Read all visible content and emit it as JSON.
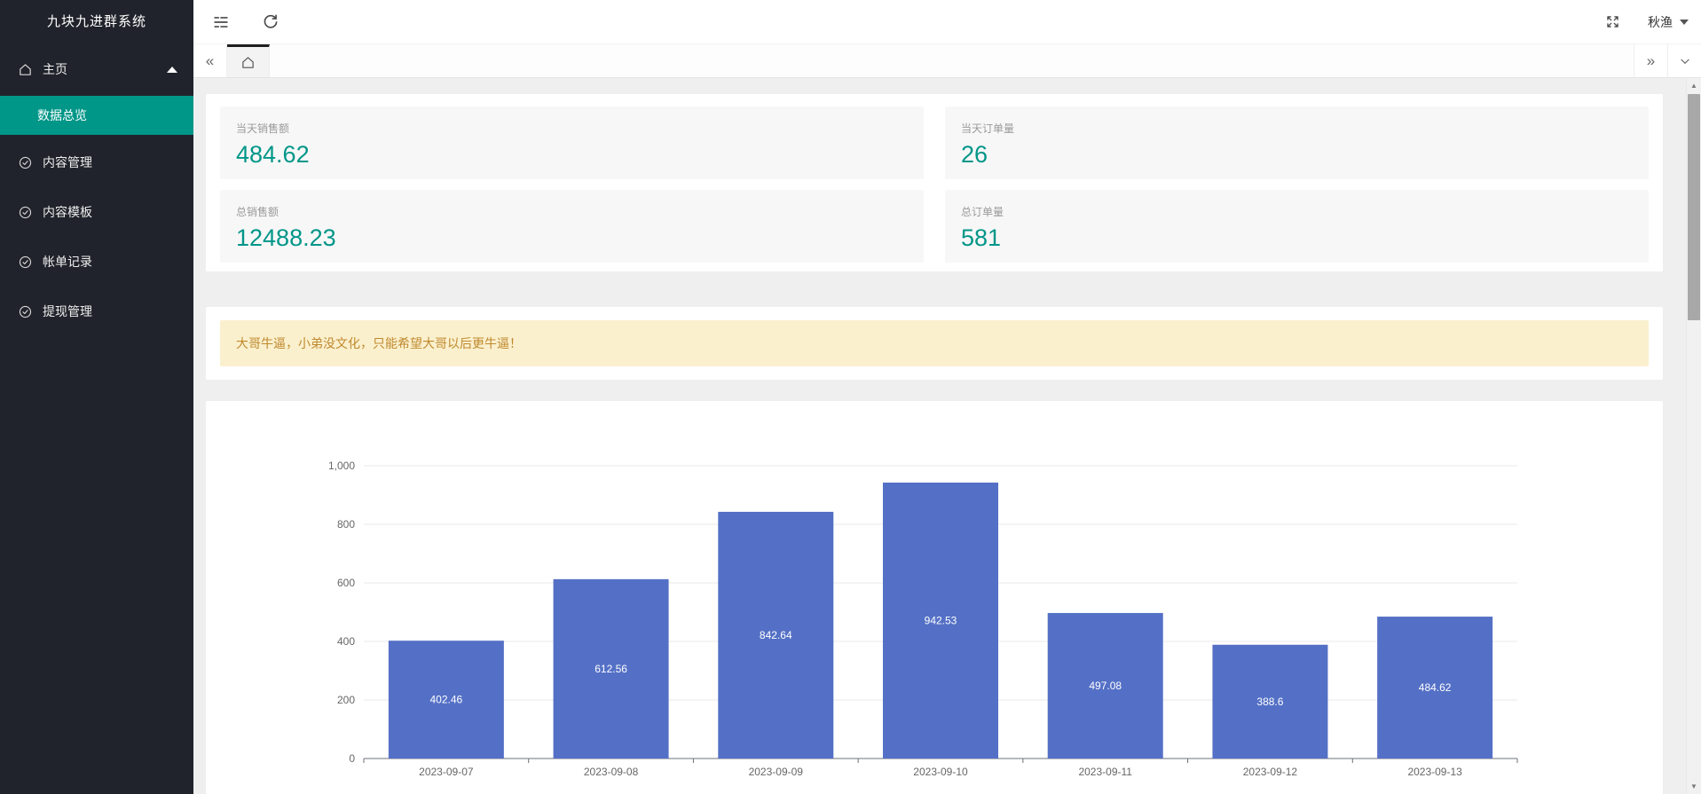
{
  "app": {
    "title": "九块九进群系统"
  },
  "sidebar": {
    "logo": "九块九进群系统",
    "menu": [
      {
        "label": "主页",
        "icon": "home-icon",
        "expanded": true,
        "children": [
          {
            "label": "数据总览",
            "active": true
          }
        ]
      },
      {
        "label": "内容管理",
        "icon": "badge-check-icon"
      },
      {
        "label": "内容模板",
        "icon": "badge-check-icon"
      },
      {
        "label": "帐单记录",
        "icon": "badge-check-icon"
      },
      {
        "label": "提现管理",
        "icon": "badge-check-icon"
      }
    ]
  },
  "topbar": {
    "user": "秋渔"
  },
  "stats": [
    {
      "label": "当天销售额",
      "value": "484.62"
    },
    {
      "label": "当天订单量",
      "value": "26"
    },
    {
      "label": "总销售额",
      "value": "12488.23"
    },
    {
      "label": "总订单量",
      "value": "581"
    }
  ],
  "notice": {
    "text": "大哥牛逼，小弟没文化，只能希望大哥以后更牛逼！"
  },
  "chart_data": {
    "type": "bar",
    "categories": [
      "2023-09-07",
      "2023-09-08",
      "2023-09-09",
      "2023-09-10",
      "2023-09-11",
      "2023-09-12",
      "2023-09-13"
    ],
    "values": [
      402.46,
      612.56,
      842.64,
      942.53,
      497.08,
      388.6,
      484.62
    ],
    "title": "",
    "xlabel": "",
    "ylabel": "",
    "ylim": [
      0,
      1000
    ],
    "yticks": [
      0,
      200,
      400,
      600,
      800,
      1000
    ],
    "grid": true,
    "legend": false,
    "bar_color": "#5470c6",
    "bar_label_color": "#ffffff",
    "axis_color": "#6e7079",
    "grid_color": "#e8e8e8",
    "tick_label_color": "#666666"
  },
  "colors": {
    "accent": "#009688",
    "sidebar_bg": "#20232b",
    "notice_bg": "#faf0cd",
    "notice_text": "#c0892e"
  }
}
